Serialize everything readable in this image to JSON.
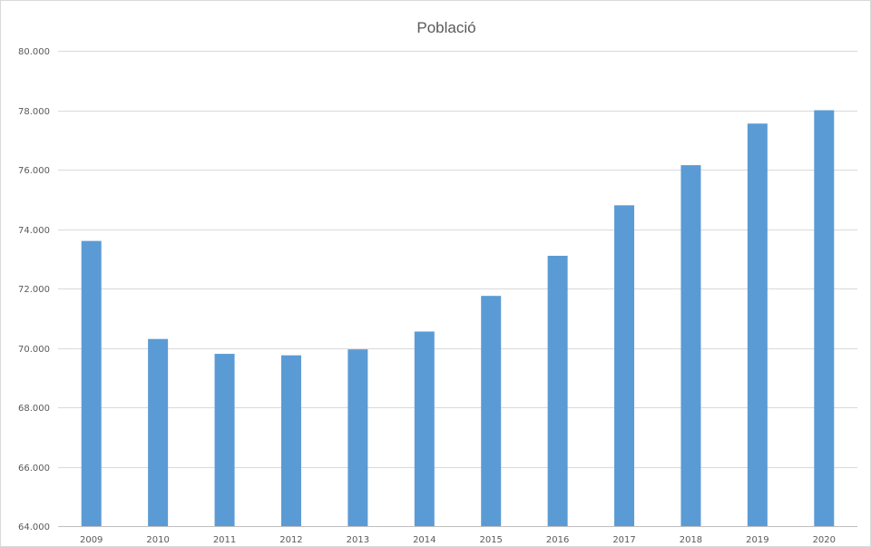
{
  "chart_data": {
    "type": "bar",
    "title": "Població",
    "xlabel": "",
    "ylabel": "",
    "categories": [
      "2009",
      "2010",
      "2011",
      "2012",
      "2013",
      "2014",
      "2015",
      "2016",
      "2017",
      "2018",
      "2019",
      "2020"
    ],
    "values": [
      73600,
      70300,
      69800,
      69750,
      69950,
      70550,
      71750,
      73100,
      74800,
      76150,
      77550,
      78000
    ],
    "ylim": [
      64000,
      80000
    ],
    "yticks": [
      64000,
      66000,
      68000,
      70000,
      72000,
      74000,
      76000,
      78000,
      80000
    ],
    "ytick_labels": [
      "64.000",
      "66.000",
      "68.000",
      "70.000",
      "72.000",
      "74.000",
      "76.000",
      "78.000",
      "80.000"
    ],
    "grid": true,
    "legend": "none",
    "bar_color": "#5b9bd5",
    "gridline_color": "#d9d9d9"
  }
}
